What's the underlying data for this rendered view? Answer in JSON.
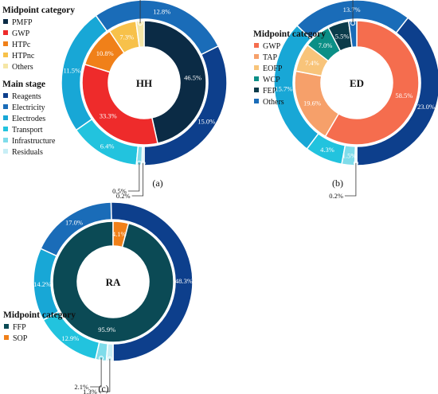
{
  "chart_data": [
    {
      "type": "pie",
      "panel_label": "(a)",
      "center_label": "HH",
      "inner_ring": {
        "legend_title": "Midpoint category",
        "slices": [
          {
            "name": "PMFP",
            "value": 46.5,
            "label": "46.5%",
            "color": "#0b2b45"
          },
          {
            "name": "GWP",
            "value": 33.3,
            "label": "33.3%",
            "color": "#ee2b2b"
          },
          {
            "name": "HTPc",
            "value": 10.8,
            "label": "10.8%",
            "color": "#f08019"
          },
          {
            "name": "HTPnc",
            "value": 7.3,
            "label": "7.3%",
            "color": "#f7c14a"
          },
          {
            "name": "Others",
            "value": 2.1,
            "label": "2.1%",
            "color": "#f5e6a6"
          }
        ]
      },
      "outer_ring": {
        "legend_title": "Main stage",
        "slices": [
          {
            "name": "Reagents",
            "value": 15.0,
            "label": "15.0%",
            "color": "#0d3f8c"
          },
          {
            "name": "Electricity",
            "value": 12.8,
            "label": "12.8%",
            "color": "#1a6cb8"
          },
          {
            "name": "Electrodes",
            "value": 11.5,
            "label": "11.5%",
            "color": "#18a7d6"
          },
          {
            "name": "Transport",
            "value": 6.4,
            "label": "6.4%",
            "color": "#22c3de"
          },
          {
            "name": "Infrastructure",
            "value": 0.5,
            "label": "0.5%",
            "color": "#7fdcea"
          },
          {
            "name": "Residuals",
            "value": 0.2,
            "label": "0.2%",
            "color": "#c8eef5"
          }
        ]
      }
    },
    {
      "type": "pie",
      "panel_label": "(b)",
      "center_label": "ED",
      "inner_ring": {
        "legend_title": "Midpoint category",
        "slices": [
          {
            "name": "GWP",
            "value": 58.5,
            "label": "58.5%",
            "color": "#f56d4e"
          },
          {
            "name": "TAP",
            "value": 19.6,
            "label": "19.6%",
            "color": "#f6a06a"
          },
          {
            "name": "EOFP",
            "value": 7.4,
            "label": "7.4%",
            "color": "#f8c47a"
          },
          {
            "name": "WCP",
            "value": 7.0,
            "label": "7.0%",
            "color": "#0b8f86"
          },
          {
            "name": "FEP",
            "value": 5.5,
            "label": "5.5%",
            "color": "#0b3b4a"
          },
          {
            "name": "Others",
            "value": 2.1,
            "label": "2.1%",
            "color": "#1a6cb8"
          }
        ]
      },
      "outer_ring": {
        "slices": [
          {
            "value": 23.0,
            "label": "23.0%",
            "color": "#0d3f8c"
          },
          {
            "value": 13.7,
            "label": "13.7%",
            "color": "#1a6cb8"
          },
          {
            "value": 15.7,
            "label": "15.7%",
            "color": "#18a7d6"
          },
          {
            "value": 4.3,
            "label": "4.3%",
            "color": "#22c3de"
          },
          {
            "value": 1.5,
            "label": "1.5%",
            "color": "#7fdcea"
          },
          {
            "value": 0.2,
            "label": "0.2%",
            "color": "#c8eef5"
          }
        ]
      }
    },
    {
      "type": "pie",
      "panel_label": "(c)",
      "center_label": "RA",
      "inner_ring": {
        "legend_title": "Midpoint category",
        "slices": [
          {
            "name": "FFP",
            "value": 95.9,
            "label": "95.9%",
            "color": "#0b4a55"
          },
          {
            "name": "SOP",
            "value": 4.1,
            "label": "4.1%",
            "color": "#f08019"
          }
        ]
      },
      "outer_ring": {
        "slices": [
          {
            "value": 48.3,
            "label": "48.3%",
            "color": "#0d3f8c"
          },
          {
            "value": 17.0,
            "label": "17.0%",
            "color": "#1a6cb8"
          },
          {
            "value": 14.2,
            "label": "14.2%",
            "color": "#18a7d6"
          },
          {
            "value": 12.9,
            "label": "12.9%",
            "color": "#22c3de"
          },
          {
            "value": 2.1,
            "label": "2.1%",
            "color": "#7fdcea"
          },
          {
            "value": 1.3,
            "label": "1.3%",
            "color": "#c8eef5"
          }
        ]
      }
    }
  ]
}
